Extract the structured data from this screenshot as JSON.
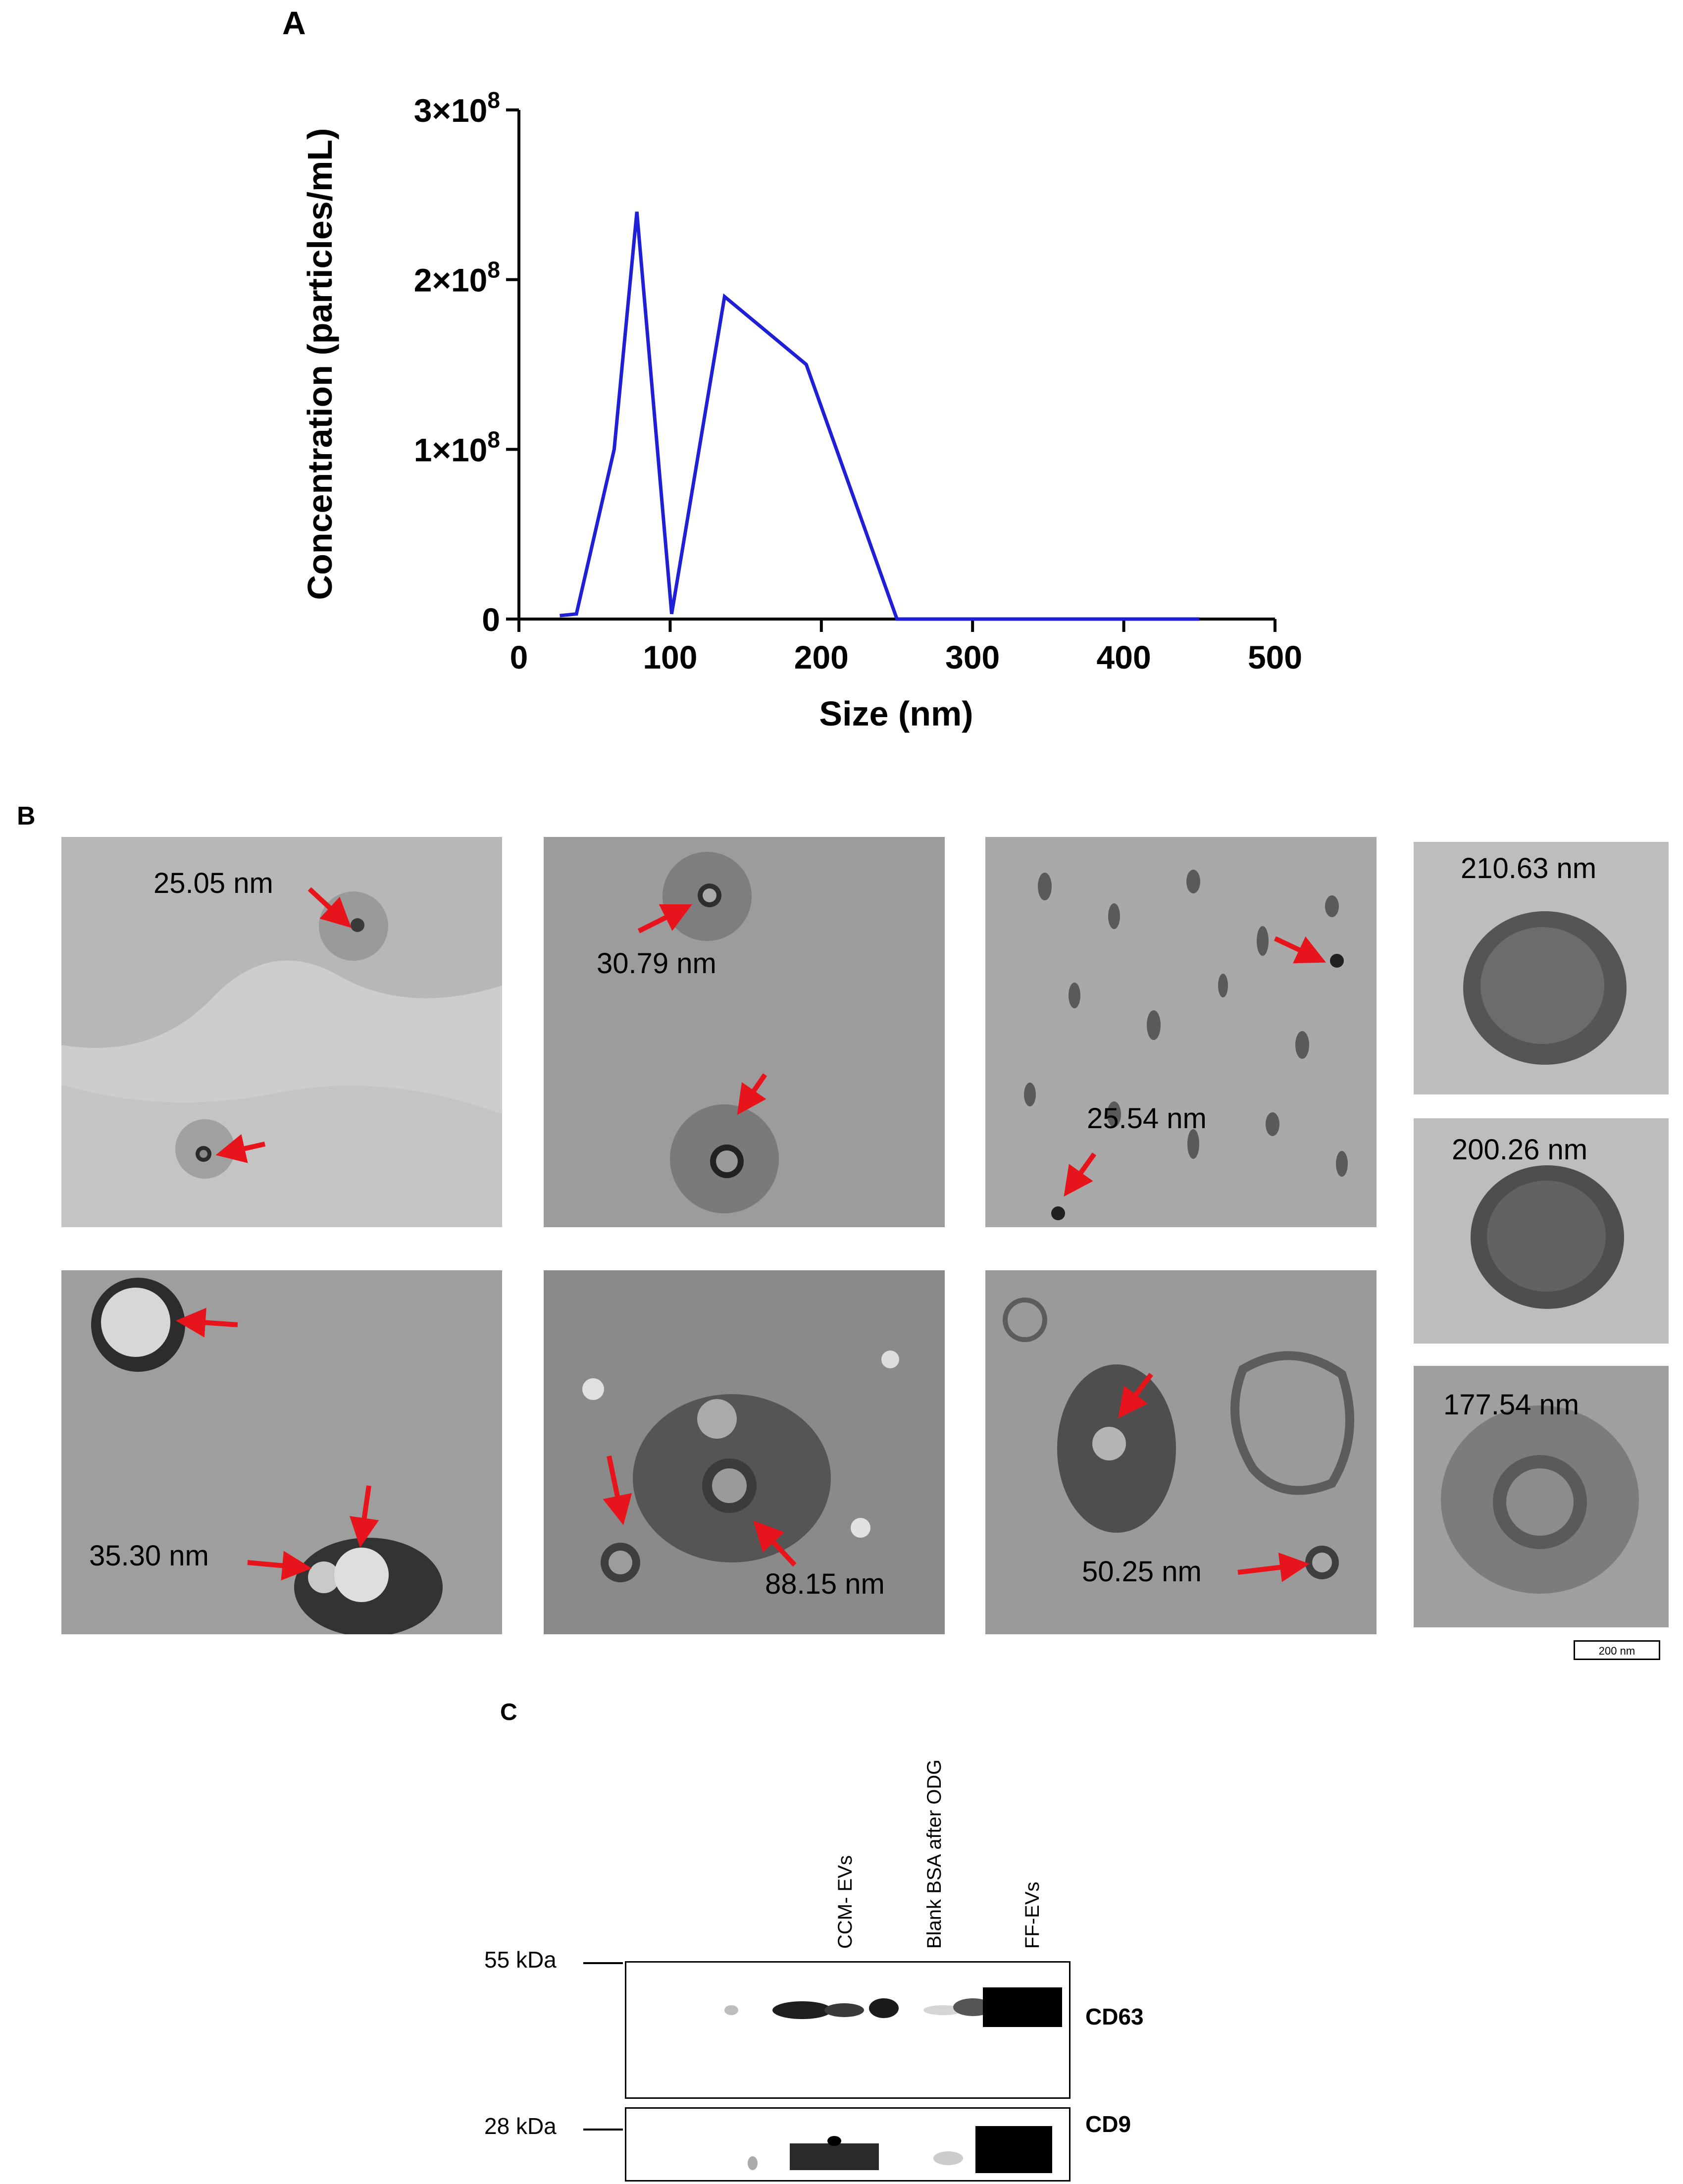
{
  "panels": {
    "a": {
      "letter": "A"
    },
    "b": {
      "letter": "B"
    },
    "c": {
      "letter": "C"
    }
  },
  "chart_data": {
    "type": "line",
    "title": "",
    "xlabel": "Size (nm)",
    "ylabel": "Concentration (particles/mL)",
    "xlim": [
      0,
      500
    ],
    "ylim": [
      0,
      300000000
    ],
    "xticks": [
      0,
      100,
      200,
      300,
      400,
      500
    ],
    "xtick_labels": [
      "0",
      "100",
      "200",
      "300",
      "400",
      "500"
    ],
    "yticks": [
      0,
      100000000,
      200000000,
      300000000
    ],
    "ytick_labels": [
      {
        "mantissa": "0",
        "times": "",
        "exp": ""
      },
      {
        "mantissa": "1",
        "times": "×10",
        "exp": "8"
      },
      {
        "mantissa": "2",
        "times": "×10",
        "exp": "8"
      },
      {
        "mantissa": "3",
        "times": "×10",
        "exp": "8"
      }
    ],
    "line_color": "#1f1fd6",
    "grid": false,
    "series": [
      {
        "name": "",
        "x": [
          27,
          38,
          63,
          78,
          101,
          136,
          190,
          250,
          300,
          350,
          400,
          450
        ],
        "y": [
          2000000,
          3000000,
          100000000,
          240000000,
          3000000,
          190000000,
          150000000,
          0,
          0,
          0,
          0,
          0
        ]
      }
    ]
  },
  "tem": {
    "measurements": [
      {
        "id": "m1",
        "text": "25.05 nm"
      },
      {
        "id": "m2",
        "text": "30.79 nm"
      },
      {
        "id": "m3",
        "text": "25.54 nm"
      },
      {
        "id": "m4",
        "text": "210.63 nm"
      },
      {
        "id": "m5",
        "text": "200.26 nm"
      },
      {
        "id": "m6",
        "text": "35.30 nm"
      },
      {
        "id": "m7",
        "text": "88.15 nm"
      },
      {
        "id": "m8",
        "text": "50.25 nm"
      },
      {
        "id": "m9",
        "text": "177.54 nm"
      }
    ],
    "scale_bar": "200 nm",
    "arrow_color": "#e8141b"
  },
  "western": {
    "lanes": [
      "CCM- EVs",
      "Blank BSA after ODG",
      "FF-EVs"
    ],
    "markers": [
      "55 kDa",
      "28 kDa"
    ],
    "bands": [
      "CD63",
      "CD9"
    ]
  }
}
